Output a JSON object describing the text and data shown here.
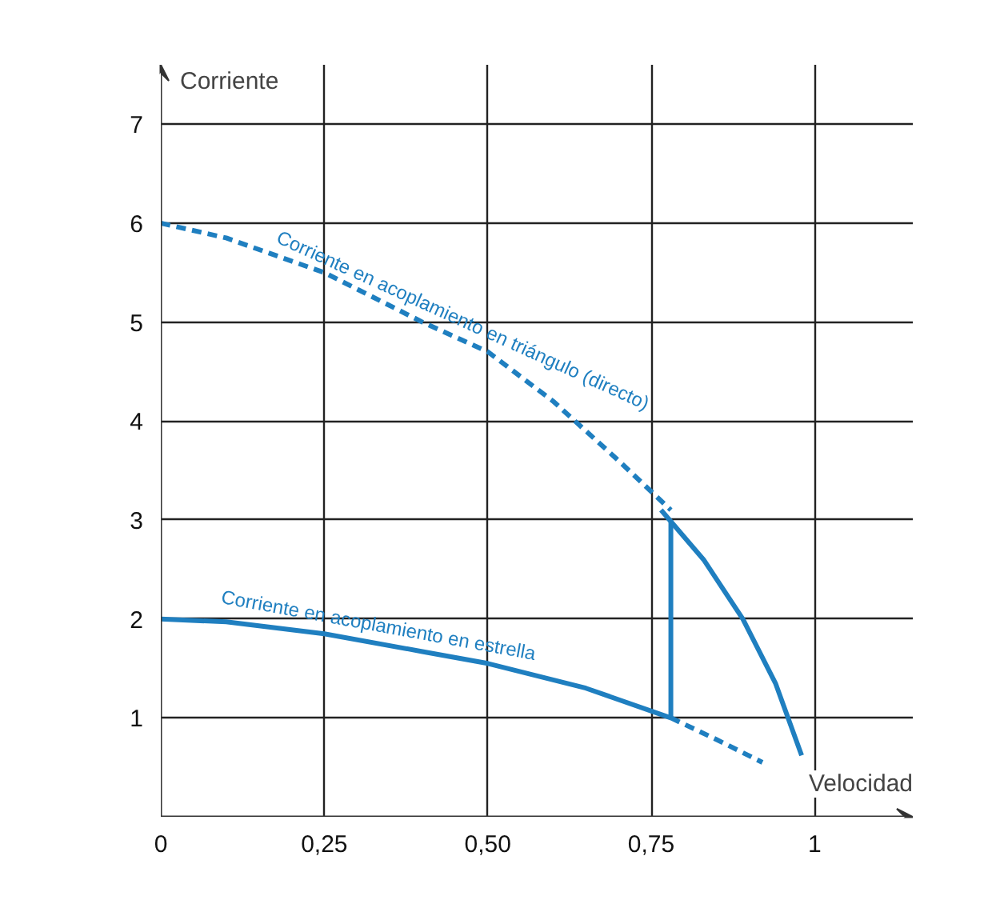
{
  "chart_data": {
    "type": "line",
    "xlabel": "Velocidad",
    "ylabel": "Corriente",
    "xlim": [
      0,
      1.15
    ],
    "ylim": [
      0,
      7.6
    ],
    "xticks": [
      {
        "value": 0,
        "label": "0"
      },
      {
        "value": 0.25,
        "label": "0,25"
      },
      {
        "value": 0.5,
        "label": "0,50"
      },
      {
        "value": 0.75,
        "label": "0,75"
      },
      {
        "value": 1,
        "label": "1"
      }
    ],
    "yticks": [
      {
        "value": 0,
        "label": null
      },
      1,
      2,
      3,
      4,
      5,
      6,
      7
    ],
    "grid": true,
    "series": [
      {
        "name": "Corriente en acoplamiento en triángulo (directo)",
        "color": "#1f7fc0",
        "line_style": "dashed",
        "x": [
          0,
          0.1,
          0.25,
          0.4,
          0.5,
          0.6,
          0.7,
          0.78
        ],
        "values": [
          6,
          5.85,
          5.5,
          5.0,
          4.7,
          4.2,
          3.6,
          3.1
        ]
      },
      {
        "color": "#1f7fc0",
        "line_style": "solid",
        "x": [
          0.765,
          0.83,
          0.89,
          0.94,
          0.98
        ],
        "values": [
          3.1,
          2.6,
          2.0,
          1.35,
          0.62
        ]
      },
      {
        "color": "#1f7fc0",
        "line_style": "solid",
        "x": [
          0.78,
          0.78
        ],
        "values": [
          1.0,
          3.0
        ]
      },
      {
        "name": "Corriente en acoplamiento en estrella",
        "color": "#1f7fc0",
        "line_style": "solid",
        "x": [
          0,
          0.1,
          0.25,
          0.4,
          0.5,
          0.65,
          0.78
        ],
        "values": [
          2,
          1.97,
          1.85,
          1.67,
          1.55,
          1.3,
          1.0
        ]
      },
      {
        "color": "#1f7fc0",
        "line_style": "dashed",
        "x": [
          0.78,
          0.85,
          0.92
        ],
        "values": [
          1.0,
          0.78,
          0.55
        ]
      }
    ]
  }
}
